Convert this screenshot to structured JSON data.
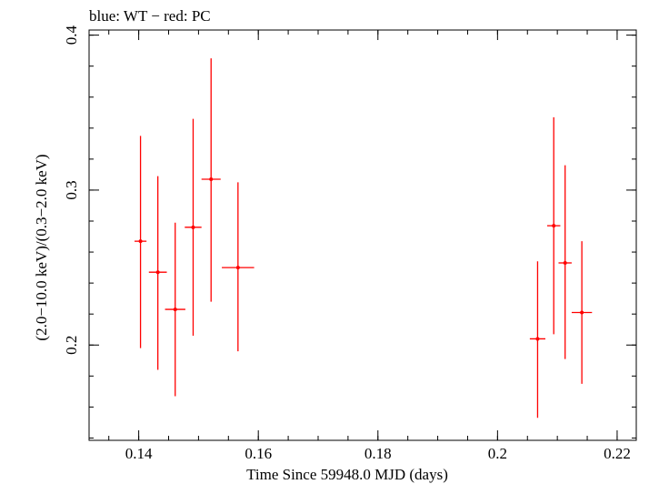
{
  "chart_data": {
    "type": "scatter",
    "title": "blue: WT − red: PC",
    "xlabel": "Time Since 59948.0 MJD (days)",
    "ylabel": "(2.0−10.0 keV)/(0.3−2.0 keV)",
    "xlim": [
      0.1317,
      0.2232
    ],
    "ylim": [
      0.1385,
      0.4033
    ],
    "x_ticks": [
      0.14,
      0.16,
      0.18,
      0.2,
      0.22
    ],
    "x_tick_labels": [
      "0.14",
      "0.16",
      "0.18",
      "0.2",
      "0.22"
    ],
    "y_ticks": [
      0.2,
      0.3,
      0.4
    ],
    "y_tick_labels": [
      "0.2",
      "0.3",
      "0.4"
    ],
    "grid": false,
    "series": [
      {
        "name": "PC",
        "color": "#ff0000",
        "points": [
          {
            "x": 0.1403,
            "y": 0.267,
            "xerr": 0.001,
            "ylo": 0.198,
            "yhi": 0.335
          },
          {
            "x": 0.1432,
            "y": 0.247,
            "xerr": 0.0015,
            "ylo": 0.184,
            "yhi": 0.309
          },
          {
            "x": 0.1461,
            "y": 0.223,
            "xerr": 0.0017,
            "ylo": 0.167,
            "yhi": 0.279
          },
          {
            "x": 0.1491,
            "y": 0.276,
            "xerr": 0.0014,
            "ylo": 0.206,
            "yhi": 0.346
          },
          {
            "x": 0.1521,
            "y": 0.307,
            "xerr": 0.0016,
            "ylo": 0.228,
            "yhi": 0.385
          },
          {
            "x": 0.1566,
            "y": 0.25,
            "xerr": 0.0027,
            "ylo": 0.196,
            "yhi": 0.305
          },
          {
            "x": 0.2067,
            "y": 0.204,
            "xerr": 0.0013,
            "ylo": 0.153,
            "yhi": 0.254
          },
          {
            "x": 0.2094,
            "y": 0.277,
            "xerr": 0.0011,
            "ylo": 0.207,
            "yhi": 0.347
          },
          {
            "x": 0.2113,
            "y": 0.253,
            "xerr": 0.0011,
            "ylo": 0.191,
            "yhi": 0.316
          },
          {
            "x": 0.2141,
            "y": 0.221,
            "xerr": 0.0017,
            "ylo": 0.175,
            "yhi": 0.267
          }
        ]
      }
    ]
  }
}
